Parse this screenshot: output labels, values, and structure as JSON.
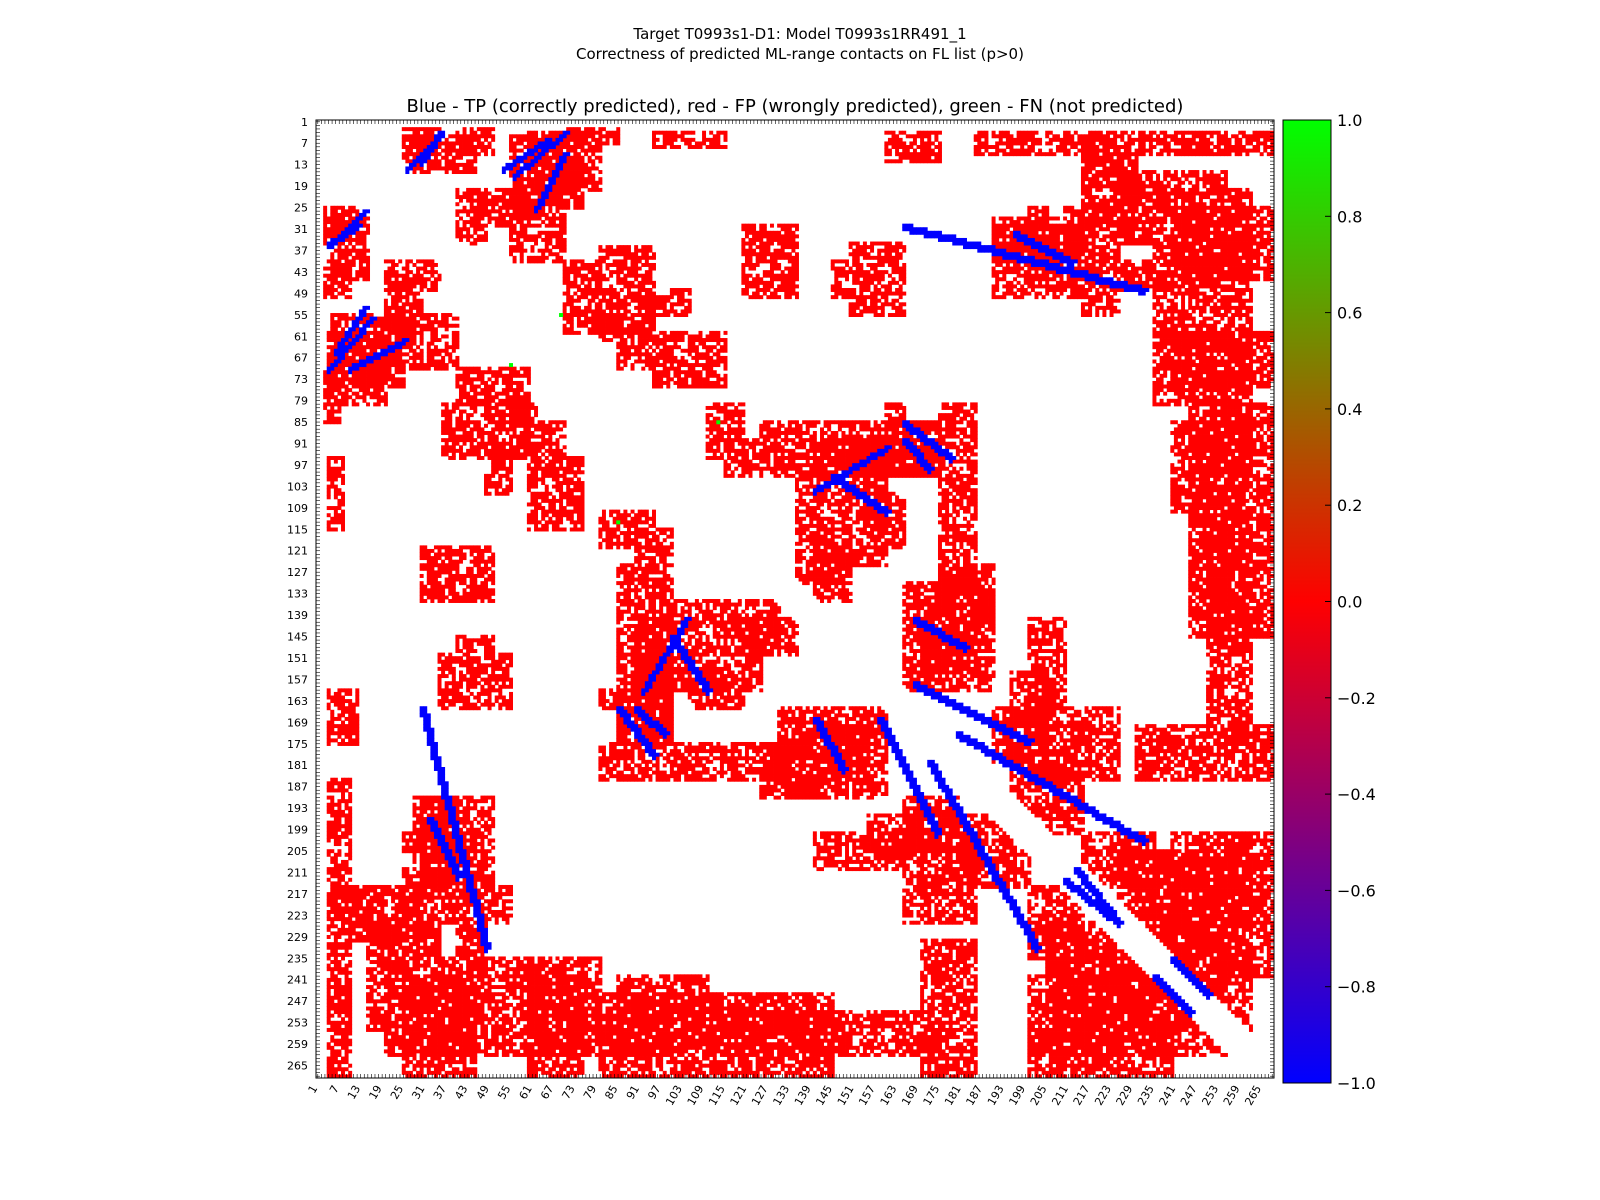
{
  "figure": {
    "title_line1": "Target T0993s1-D1: Model T0993s1RR491_1",
    "title_line2": "Correctness of predicted ML-range contacts on FL list (p>0)"
  },
  "chart_data": {
    "type": "heatmap",
    "title": "Blue - TP (correctly predicted), red - FP (wrongly predicted), green - FN (not predicted)",
    "xlabel": "",
    "ylabel": "",
    "x_range": [
      1,
      268
    ],
    "y_range": [
      1,
      268
    ],
    "y_inverted": true,
    "x_tick_labels": [
      "1",
      "7",
      "13",
      "19",
      "25",
      "31",
      "37",
      "43",
      "49",
      "55",
      "61",
      "67",
      "73",
      "79",
      "85",
      "91",
      "97",
      "103",
      "109",
      "115",
      "121",
      "127",
      "133",
      "139",
      "145",
      "151",
      "157",
      "163",
      "169",
      "175",
      "181",
      "187",
      "193",
      "199",
      "205",
      "211",
      "217",
      "223",
      "229",
      "235",
      "241",
      "247",
      "253",
      "259",
      "265"
    ],
    "y_tick_labels": [
      "1",
      "7",
      "13",
      "19",
      "25",
      "31",
      "37",
      "43",
      "49",
      "55",
      "61",
      "67",
      "73",
      "79",
      "85",
      "91",
      "97",
      "103",
      "109",
      "115",
      "121",
      "127",
      "133",
      "139",
      "145",
      "151",
      "157",
      "163",
      "169",
      "175",
      "181",
      "187",
      "193",
      "199",
      "205",
      "211",
      "217",
      "223",
      "229",
      "235",
      "241",
      "247",
      "253",
      "259",
      "265"
    ],
    "colorbar": {
      "min": -1.0,
      "max": 1.0,
      "tick_labels": [
        "1.0",
        "0.8",
        "0.6",
        "0.4",
        "0.2",
        "0.0",
        "−0.2",
        "−0.4",
        "−0.6",
        "−0.8",
        "−1.0"
      ],
      "colors": [
        "#00ff00",
        "#ff0000",
        "#0000ff"
      ]
    },
    "value_codes": {
      "TP": -1.0,
      "FP": 0.0,
      "FN": 1.0
    },
    "colors": {
      "TP": "#0000ff",
      "FP": "#ff0000",
      "FN": "#00ff00"
    },
    "fp_regions": [
      [
        25,
        35,
        3,
        12
      ],
      [
        40,
        50,
        3,
        10
      ],
      [
        60,
        80,
        4,
        20
      ],
      [
        95,
        115,
        4,
        8
      ],
      [
        160,
        175,
        4,
        12
      ],
      [
        185,
        270,
        4,
        10
      ],
      [
        5,
        15,
        28,
        45
      ],
      [
        20,
        30,
        45,
        60
      ],
      [
        5,
        25,
        55,
        75
      ],
      [
        3,
        7,
        70,
        85
      ],
      [
        40,
        48,
        20,
        35
      ],
      [
        55,
        70,
        20,
        40
      ],
      [
        30,
        50,
        120,
        135
      ],
      [
        35,
        55,
        150,
        165
      ],
      [
        33,
        43,
        195,
        210
      ],
      [
        5,
        15,
        215,
        225
      ],
      [
        25,
        40,
        210,
        225
      ],
      [
        20,
        80,
        235,
        262
      ],
      [
        85,
        110,
        240,
        260
      ],
      [
        110,
        170,
        250,
        262
      ],
      [
        200,
        250,
        255,
        262
      ],
      [
        240,
        268,
        25,
        45
      ],
      [
        240,
        268,
        60,
        75
      ],
      [
        245,
        268,
        80,
        100
      ],
      [
        245,
        268,
        100,
        145
      ],
      [
        215,
        230,
        10,
        30
      ],
      [
        200,
        205,
        25,
        45
      ],
      [
        190,
        215,
        30,
        40
      ],
      [
        55,
        60,
        70,
        95
      ],
      [
        50,
        55,
        90,
        100
      ],
      [
        80,
        95,
        36,
        62
      ],
      [
        85,
        95,
        55,
        70
      ],
      [
        95,
        115,
        60,
        75
      ],
      [
        100,
        105,
        48,
        55
      ],
      [
        110,
        120,
        80,
        95
      ],
      [
        115,
        125,
        90,
        100
      ],
      [
        125,
        175,
        85,
        100
      ],
      [
        150,
        160,
        85,
        125
      ],
      [
        140,
        150,
        120,
        135
      ],
      [
        160,
        165,
        80,
        90
      ],
      [
        90,
        100,
        140,
        180
      ],
      [
        85,
        100,
        160,
        180
      ],
      [
        105,
        120,
        155,
        165
      ],
      [
        40,
        50,
        145,
        160
      ],
      [
        70,
        90,
        40,
        55
      ],
      [
        100,
        130,
        135,
        150
      ],
      [
        130,
        160,
        165,
        190
      ],
      [
        170,
        185,
        140,
        155
      ],
      [
        175,
        190,
        125,
        140
      ],
      [
        195,
        205,
        155,
        180
      ],
      [
        200,
        225,
        165,
        185
      ],
      [
        230,
        268,
        170,
        185
      ],
      [
        240,
        268,
        200,
        235
      ],
      [
        225,
        268,
        205,
        235
      ],
      [
        235,
        268,
        215,
        240
      ],
      [
        165,
        180,
        190,
        205
      ],
      [
        180,
        200,
        195,
        215
      ],
      [
        200,
        215,
        215,
        235
      ],
      [
        205,
        255,
        230,
        262
      ],
      [
        28,
        50,
        190,
        215
      ],
      [
        40,
        48,
        205,
        245
      ],
      [
        35,
        55,
        215,
        225
      ],
      [
        15,
        35,
        225,
        255
      ],
      [
        60,
        100,
        252,
        262
      ],
      [
        140,
        160,
        252,
        262
      ],
      [
        80,
        150,
        175,
        185
      ],
      [
        140,
        165,
        200,
        210
      ]
    ],
    "tp_segments": [
      [
        [
          5,
          35
        ],
        [
          14,
          26
        ]
      ],
      [
        [
          6,
          65
        ],
        [
          14,
          53
        ]
      ],
      [
        [
          35,
          4
        ],
        [
          30,
          12
        ]
      ],
      [
        [
          70,
          4
        ],
        [
          56,
          16
        ]
      ],
      [
        [
          25,
          62
        ],
        [
          10,
          70
        ]
      ],
      [
        [
          165,
          30
        ],
        [
          232,
          48
        ]
      ],
      [
        [
          165,
          90
        ],
        [
          172,
          98
        ]
      ],
      [
        [
          172,
          180
        ],
        [
          202,
          232
        ]
      ],
      [
        [
          32,
          196
        ],
        [
          40,
          212
        ]
      ],
      [
        [
          210,
          213
        ],
        [
          225,
          225
        ]
      ],
      [
        [
          85,
          165
        ],
        [
          95,
          178
        ]
      ],
      [
        [
          235,
          240
        ],
        [
          245,
          250
        ]
      ],
      [
        [
          100,
          145
        ],
        [
          110,
          160
        ]
      ],
      [
        [
          140,
          168
        ],
        [
          148,
          182
        ]
      ],
      [
        [
          104,
          140
        ],
        [
          92,
          160
        ]
      ],
      [
        [
          168,
          158
        ],
        [
          200,
          174
        ]
      ]
    ],
    "fn_cells": [
      [
        55,
        69
      ],
      [
        85,
        113
      ],
      [
        113,
        85
      ],
      [
        69,
        55
      ]
    ]
  }
}
